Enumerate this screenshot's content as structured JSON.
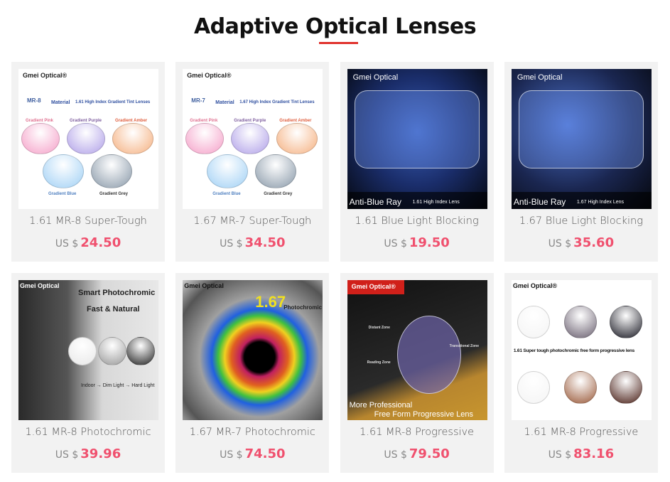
{
  "page_title": "Adaptive Optical Lenses",
  "accent_color": "#e0322d",
  "price_color": "#f0506e",
  "currency_label": "US $",
  "products": [
    {
      "title": "1.61 MR-8 Super-Tough",
      "price": "24.50",
      "image_text": [
        "Gmei Optical®",
        "MR-8",
        "Material",
        "1.61 High Index Gradient Tint Lenses",
        "Gradient Pink",
        "Gradient Purple",
        "Gradient Amber",
        "Gradient Blue",
        "Gradient Grey"
      ]
    },
    {
      "title": "1.67 MR-7 Super-Tough",
      "price": "34.50",
      "image_text": [
        "Gmei Optical®",
        "MR-7",
        "Material",
        "1.67 High Index Gradient Tint Lenses",
        "Gradient Pink",
        "Gradient Purple",
        "Gradient Amber",
        "Gradient Blue",
        "Gradient Grey"
      ]
    },
    {
      "title": "1.61 Blue Light Blocking",
      "price": "19.50",
      "image_text": [
        "Gmei Optical",
        "Anti-Blue Ray",
        "1.61 High Index Lens"
      ]
    },
    {
      "title": "1.67 Blue Light Blocking",
      "price": "35.60",
      "image_text": [
        "Gmei Optical",
        "Anti-Blue Ray",
        "1.67 High Index Lens"
      ]
    },
    {
      "title": "1.61 MR-8 Photochromic",
      "price": "39.96",
      "image_text": [
        "Gmei Optical",
        "Smart Photochromic",
        "Fast & Natural",
        "Indoor → Dim Light → Hard Light"
      ]
    },
    {
      "title": "1.67 MR-7 Photochromic",
      "price": "74.50",
      "image_text": [
        "Gmei Optical",
        "1.67",
        "Photochromic"
      ]
    },
    {
      "title": "1.61 MR-8 Progressive",
      "price": "79.50",
      "image_text": [
        "Gmei Optical®",
        "Distant Zone",
        "Transitional Zone",
        "Reading Zone",
        "More Professional",
        "Free Form Progressive Lens"
      ]
    },
    {
      "title": "1.61 MR-8 Progressive",
      "price": "83.16",
      "image_text": [
        "Gmei Optical®",
        "1.61 Super tough photochromic free form progressive lens"
      ]
    }
  ]
}
